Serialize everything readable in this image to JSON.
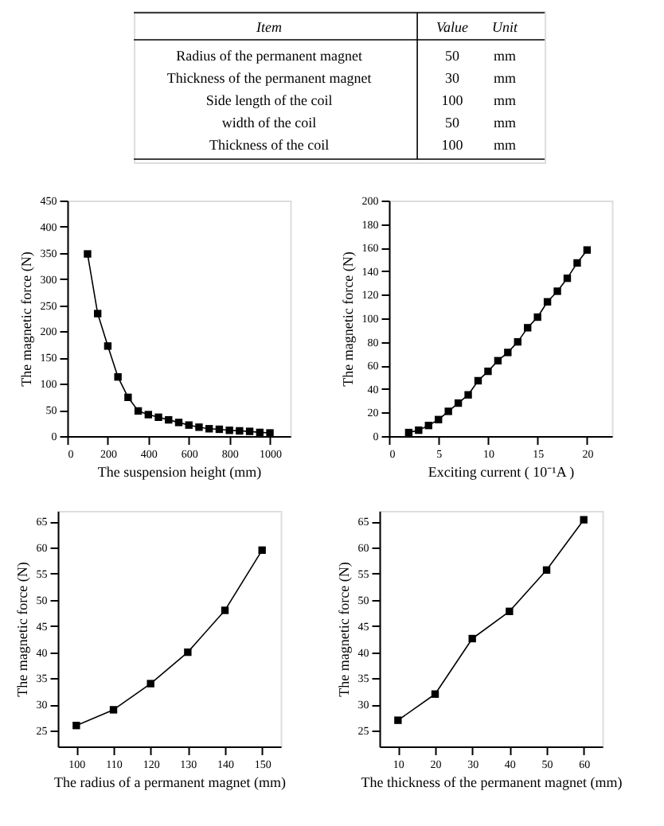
{
  "chart_data": [
    {
      "type": "other",
      "annotations": [
        "Item",
        "Value",
        "Unit",
        "Radius of the permanent magnet",
        "50",
        "mm",
        "Thickness of the permanent magnet",
        "30",
        "mm",
        "Side length of the coil",
        "100",
        "mm",
        "width of the coil",
        "50",
        "mm",
        "Thickness of the coil",
        "100",
        "mm"
      ]
    },
    {
      "type": "line",
      "xlabel": "The suspension height (mm)",
      "ylabel": "The magnetic force (N)",
      "marker": "square",
      "line_style": "solid",
      "grid": false,
      "x": [
        100,
        150,
        200,
        250,
        300,
        350,
        400,
        450,
        500,
        550,
        600,
        650,
        700,
        750,
        800,
        850,
        900,
        950,
        1000
      ],
      "series": [
        {
          "color": "#000000",
          "values": [
            348,
            234,
            172,
            113,
            74,
            48,
            41,
            36,
            31,
            26,
            21,
            17,
            14,
            13,
            11,
            10,
            9,
            7,
            6
          ]
        }
      ],
      "xlim": [
        0,
        1100
      ],
      "xticks": [
        0,
        200,
        400,
        600,
        800,
        1000
      ],
      "ylim": [
        0,
        450
      ],
      "yticks": [
        0,
        50,
        100,
        150,
        200,
        250,
        300,
        350,
        400,
        450
      ]
    },
    {
      "type": "line",
      "xlabel": "Exciting current ( 10⁻¹A )",
      "ylabel": "The magnetic force (N)",
      "marker": "square",
      "line_style": "solid",
      "grid": false,
      "x": [
        2,
        3,
        4,
        5,
        6,
        7,
        8,
        9,
        10,
        11,
        12,
        13,
        14,
        15,
        16,
        17,
        18,
        19,
        20
      ],
      "series": [
        {
          "color": "#000000",
          "values": [
            3,
            5,
            9,
            14,
            21,
            28,
            35,
            47,
            55,
            64,
            71,
            80,
            92,
            101,
            114,
            123,
            134,
            147,
            158
          ]
        }
      ],
      "xlim": [
        0,
        22.5
      ],
      "xticks": [
        0,
        5,
        10,
        15,
        20
      ],
      "ylim": [
        0,
        200
      ],
      "yticks": [
        0,
        20,
        40,
        60,
        80,
        100,
        120,
        140,
        160,
        180,
        200
      ]
    },
    {
      "type": "line",
      "xlabel": "The radius of a permanent magnet (mm)",
      "ylabel": "The magnetic force (N)",
      "marker": "square",
      "line_style": "solid",
      "grid": false,
      "x": [
        100,
        110,
        120,
        130,
        140,
        150
      ],
      "series": [
        {
          "color": "#000000",
          "values": [
            26,
            29,
            34,
            40,
            48,
            59.5
          ]
        }
      ],
      "xlim": [
        95,
        155
      ],
      "xticks": [
        100,
        110,
        120,
        130,
        140,
        150
      ],
      "ylim": [
        22,
        67
      ],
      "yticks": [
        25,
        30,
        35,
        40,
        45,
        50,
        55,
        60,
        65
      ]
    },
    {
      "type": "line",
      "xlabel": "The thickness of the permanent magnet (mm)",
      "ylabel": "The magnetic force (N)",
      "marker": "square",
      "line_style": "solid",
      "grid": false,
      "x": [
        10,
        20,
        30,
        40,
        50,
        60
      ],
      "series": [
        {
          "color": "#000000",
          "values": [
            27,
            32,
            42.6,
            47.8,
            55.7,
            65.3
          ]
        }
      ],
      "xlim": [
        5,
        65
      ],
      "xticks": [
        10,
        20,
        30,
        40,
        50,
        60
      ],
      "ylim": [
        22,
        67
      ],
      "yticks": [
        25,
        30,
        35,
        40,
        45,
        50,
        55,
        60,
        65
      ]
    }
  ]
}
